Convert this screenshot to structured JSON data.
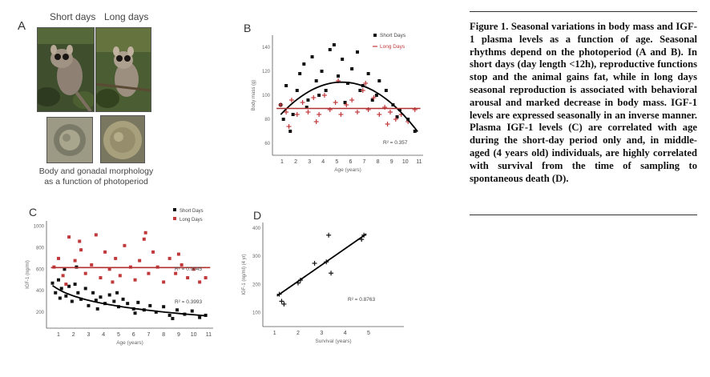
{
  "panel_a": {
    "letter": "A",
    "label_short": "Short days",
    "label_long": "Long days",
    "caption_line1": "Body and gonadal morphology",
    "caption_line2": "as a function of photoperiod"
  },
  "figure_caption": "Figure 1. Seasonal variations in body mass and IGF-1 plasma levels as a function of age. Seasonal rhythms depend on the photoperiod (A and B). In short days (day length <12h), reproductive functions stop and the animal gains fat, while in long days seasonal reproduction is associated with behavioral arousal and marked decrease in body mass. IGF-1 levels are expressed seasonally in an inverse manner. Plasma IGF-1 levels (C) are correlated with age during the short-day period only and, in middle-aged (4 years old) individuals, are highly correlated with survival from the time of sampling to spontaneous death (D).",
  "colors": {
    "short": "#111111",
    "long": "#c0393b",
    "fit_short": "#000000",
    "fit_long": "#b03030"
  },
  "chart_data": [
    {
      "panel": "B",
      "type": "scatter",
      "xlabel": "Age (years)",
      "ylabel": "Body mass (g)",
      "xlim": [
        0.3,
        11.3
      ],
      "ylim": [
        50,
        150
      ],
      "x_ticks": [
        "1",
        "2",
        "3",
        "4",
        "5",
        "6",
        "7",
        "8",
        "9",
        "10",
        "11"
      ],
      "y_ticks": [
        "60",
        "80",
        "100",
        "120",
        "140"
      ],
      "legend": [
        "Short Days",
        "Long Days"
      ],
      "r2_label": "R² = 0.357",
      "series": [
        {
          "name": "Short Days",
          "marker": "square",
          "points": [
            [
              0.9,
              92
            ],
            [
              1.1,
              80
            ],
            [
              1.3,
              108
            ],
            [
              1.6,
              70
            ],
            [
              2.1,
              104
            ],
            [
              2.3,
              118
            ],
            [
              2.6,
              126
            ],
            [
              2.9,
              96
            ],
            [
              3.2,
              132
            ],
            [
              3.5,
              112
            ],
            [
              3.9,
              120
            ],
            [
              4.2,
              104
            ],
            [
              4.5,
              138
            ],
            [
              4.8,
              142
            ],
            [
              5.1,
              116
            ],
            [
              5.4,
              130
            ],
            [
              5.8,
              110
            ],
            [
              6.1,
              122
            ],
            [
              6.5,
              136
            ],
            [
              6.9,
              108
            ],
            [
              7.3,
              118
            ],
            [
              7.6,
              96
            ],
            [
              8.1,
              112
            ],
            [
              8.6,
              104
            ],
            [
              9.1,
              92
            ],
            [
              9.6,
              88
            ],
            [
              10.2,
              80
            ],
            [
              10.7,
              70
            ],
            [
              1.8,
              84
            ],
            [
              2.8,
              90
            ],
            [
              3.7,
              100
            ],
            [
              5.6,
              94
            ],
            [
              6.7,
              104
            ],
            [
              7.9,
              100
            ],
            [
              9.4,
              82
            ]
          ]
        },
        {
          "name": "Long Days",
          "marker": "cross",
          "points": [
            [
              0.9,
              92
            ],
            [
              1.3,
              86
            ],
            [
              1.7,
              96
            ],
            [
              2.1,
              84
            ],
            [
              2.5,
              94
            ],
            [
              2.9,
              86
            ],
            [
              3.3,
              98
            ],
            [
              3.7,
              84
            ],
            [
              4.1,
              100
            ],
            [
              4.5,
              88
            ],
            [
              4.9,
              94
            ],
            [
              5.3,
              84
            ],
            [
              5.7,
              92
            ],
            [
              6.1,
              96
            ],
            [
              6.5,
              86
            ],
            [
              6.9,
              104
            ],
            [
              7.3,
              88
            ],
            [
              7.7,
              98
            ],
            [
              8.1,
              84
            ],
            [
              8.5,
              90
            ],
            [
              8.9,
              86
            ],
            [
              9.3,
              80
            ],
            [
              9.7,
              84
            ],
            [
              10.2,
              78
            ],
            [
              10.7,
              88
            ],
            [
              1.5,
              74
            ],
            [
              3.5,
              78
            ],
            [
              5.1,
              112
            ],
            [
              7.1,
              110
            ],
            [
              8.7,
              76
            ]
          ]
        }
      ],
      "fits": [
        {
          "name": "Short Days fit",
          "kind": "quadratic",
          "coef": [
            72,
            14.5,
            -1.35
          ]
        },
        {
          "name": "Long Days fit",
          "kind": "flat",
          "value": 89
        }
      ]
    },
    {
      "panel": "C",
      "type": "scatter",
      "xlabel": "Age (years)",
      "ylabel": "IGF-1 (ng/ml)",
      "xlim": [
        0.2,
        11.3
      ],
      "ylim": [
        50,
        1050
      ],
      "x_ticks": [
        "1",
        "2",
        "3",
        "4",
        "5",
        "6",
        "7",
        "8",
        "9",
        "10",
        "11"
      ],
      "y_ticks": [
        "200",
        "400",
        "600",
        "800",
        "1000"
      ],
      "legend": [
        "Short Days",
        "Long Days"
      ],
      "r2_long": "R² = 0.0045",
      "r2_short": "R² = 0.3993",
      "series": [
        {
          "name": "Short Days",
          "marker": "square",
          "points": [
            [
              0.6,
              470
            ],
            [
              0.8,
              380
            ],
            [
              1.0,
              500
            ],
            [
              1.2,
              420
            ],
            [
              1.5,
              350
            ],
            [
              1.7,
              440
            ],
            [
              1.9,
              300
            ],
            [
              2.1,
              460
            ],
            [
              2.3,
              380
            ],
            [
              2.5,
              320
            ],
            [
              2.8,
              420
            ],
            [
              3.0,
              260
            ],
            [
              3.3,
              380
            ],
            [
              3.5,
              310
            ],
            [
              3.8,
              340
            ],
            [
              4.1,
              280
            ],
            [
              4.4,
              360
            ],
            [
              4.7,
              300
            ],
            [
              5.0,
              250
            ],
            [
              5.3,
              320
            ],
            [
              5.6,
              280
            ],
            [
              6.0,
              230
            ],
            [
              6.3,
              290
            ],
            [
              6.7,
              220
            ],
            [
              7.1,
              260
            ],
            [
              7.5,
              200
            ],
            [
              8.0,
              250
            ],
            [
              8.4,
              170
            ],
            [
              8.9,
              220
            ],
            [
              9.4,
              180
            ],
            [
              9.9,
              210
            ],
            [
              10.4,
              150
            ],
            [
              10.8,
              170
            ],
            [
              1.4,
              600
            ],
            [
              2.2,
              620
            ],
            [
              3.6,
              230
            ],
            [
              6.1,
              190
            ],
            [
              8.6,
              140
            ],
            [
              1.1,
              330
            ],
            [
              4.9,
              380
            ]
          ]
        },
        {
          "name": "Long Days",
          "marker": "square",
          "points": [
            [
              0.7,
              620
            ],
            [
              1.0,
              700
            ],
            [
              1.3,
              540
            ],
            [
              1.7,
              900
            ],
            [
              2.1,
              680
            ],
            [
              2.5,
              780
            ],
            [
              2.8,
              560
            ],
            [
              3.2,
              640
            ],
            [
              3.5,
              920
            ],
            [
              3.8,
              520
            ],
            [
              4.1,
              760
            ],
            [
              4.4,
              600
            ],
            [
              4.8,
              700
            ],
            [
              5.1,
              540
            ],
            [
              5.4,
              820
            ],
            [
              5.8,
              620
            ],
            [
              6.1,
              500
            ],
            [
              6.4,
              680
            ],
            [
              6.7,
              880
            ],
            [
              7.0,
              560
            ],
            [
              7.3,
              760
            ],
            [
              7.6,
              620
            ],
            [
              8.0,
              480
            ],
            [
              8.4,
              700
            ],
            [
              8.8,
              560
            ],
            [
              9.2,
              640
            ],
            [
              9.6,
              520
            ],
            [
              10.0,
              600
            ],
            [
              10.4,
              480
            ],
            [
              10.8,
              520
            ],
            [
              6.8,
              940
            ],
            [
              2.4,
              860
            ],
            [
              4.6,
              480
            ],
            [
              9.0,
              740
            ],
            [
              1.5,
              460
            ]
          ]
        }
      ],
      "fits": [
        {
          "name": "Short Days fit",
          "kind": "log",
          "a": 470,
          "b": -125
        },
        {
          "name": "Long Days fit",
          "kind": "flat",
          "value": 615
        }
      ]
    },
    {
      "panel": "D",
      "type": "scatter",
      "xlabel": "Survival (years)",
      "ylabel": "IGF-1 (ng/ml) (4 yr)",
      "xlim": [
        0.5,
        6.5
      ],
      "ylim": [
        50,
        420
      ],
      "x_ticks": [
        "1",
        "2",
        "3",
        "4",
        "5"
      ],
      "y_ticks": [
        "100",
        "200",
        "300",
        "400"
      ],
      "r2_label": "R² = 0.8763",
      "series": [
        {
          "name": "Individuals",
          "marker": "cross",
          "points": [
            [
              1.2,
              165
            ],
            [
              1.3,
              140
            ],
            [
              1.4,
              130
            ],
            [
              2.0,
              205
            ],
            [
              2.1,
              215
            ],
            [
              2.7,
              275
            ],
            [
              3.2,
              280
            ],
            [
              3.3,
              375
            ],
            [
              3.4,
              240
            ],
            [
              4.7,
              360
            ],
            [
              4.8,
              375
            ]
          ]
        }
      ],
      "fits": [
        {
          "name": "Linear fit",
          "kind": "linear",
          "slope": 58,
          "intercept": 95,
          "x_from": 1.1,
          "x_to": 4.9
        }
      ]
    }
  ]
}
